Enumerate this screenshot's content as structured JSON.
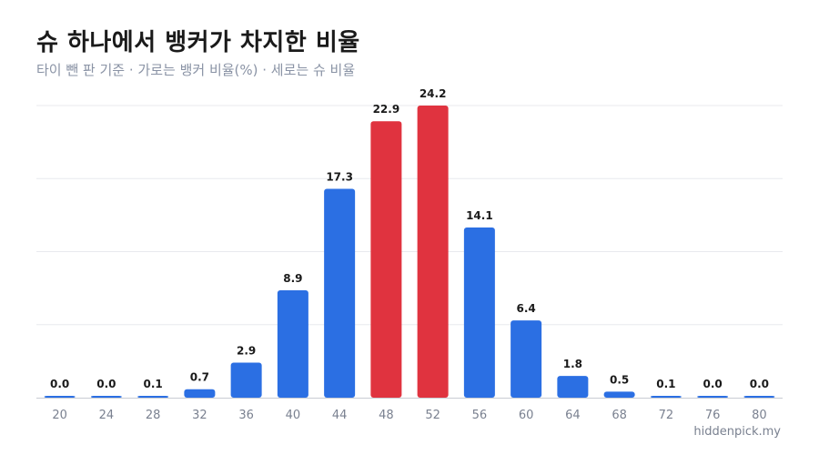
{
  "header": {
    "title": "슈 하나에서 뱅커가 차지한 비율",
    "subtitle": "타이 뺀 판 기준 · 가로는 뱅커 비율(%) · 세로는 슈 비율"
  },
  "watermark": "hiddenpick.my",
  "colors": {
    "bar": "#2b6fe3",
    "highlight": "#e0333f",
    "grid": "#e8eaee",
    "axis": "#c8ccd3",
    "tick_text": "#7a8190",
    "label_text": "#1a1a1a"
  },
  "chart_data": {
    "type": "bar",
    "categories": [
      "20",
      "24",
      "28",
      "32",
      "36",
      "40",
      "44",
      "48",
      "52",
      "56",
      "60",
      "64",
      "68",
      "72",
      "76",
      "80"
    ],
    "values": [
      0.0,
      0.0,
      0.1,
      0.7,
      2.9,
      8.9,
      17.3,
      22.9,
      24.2,
      14.1,
      6.4,
      1.8,
      0.5,
      0.1,
      0.0,
      0.0
    ],
    "data_labels": [
      "0.0",
      "0.0",
      "0.1",
      "0.7",
      "2.9",
      "8.9",
      "17.3",
      "22.9",
      "24.2",
      "14.1",
      "6.4",
      "1.8",
      "0.5",
      "0.1",
      "0.0",
      "0.0"
    ],
    "highlighted_categories": [
      "48",
      "52"
    ],
    "title": "슈 하나에서 뱅커가 차지한 비율",
    "xlabel": "",
    "ylabel": "",
    "ylim": [
      0,
      24.2
    ],
    "grid": true,
    "legend": "none"
  }
}
